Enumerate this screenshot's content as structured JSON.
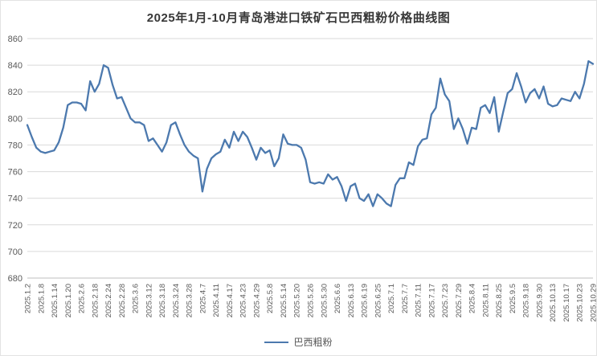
{
  "title": "2025年1月-10月青岛港进口铁矿石巴西粗粉价格曲线图",
  "legend": {
    "series_label": "巴西粗粉"
  },
  "colors": {
    "line": "#4c79ae",
    "grid": "#d9d9d9",
    "axis": "#bfbfbf",
    "tick_text": "#595959",
    "title_text": "#383838",
    "background": "#ffffff"
  },
  "chart_data": {
    "type": "line",
    "title": "2025年1月-10月青岛港进口铁矿石巴西粗粉价格曲线图",
    "xlabel": "",
    "ylabel": "",
    "ylim": [
      680,
      860
    ],
    "yticks": [
      680,
      700,
      720,
      740,
      760,
      780,
      800,
      820,
      840,
      860
    ],
    "grid": "horizontal",
    "legend_position": "bottom",
    "label_step": 3,
    "x_labels": [
      "2025.1.2",
      "2025.1.8",
      "2025.1.14",
      "2025.1.20",
      "2025.2.6",
      "2025.2.18",
      "2025.2.24",
      "2025.2.28",
      "2025.3.6",
      "2025.3.12",
      "2025.3.18",
      "2025.3.24",
      "2025.3.28",
      "2025.4.7",
      "2025.4.11",
      "2025.4.17",
      "2025.4.23",
      "2025.4.29",
      "2025.5.8",
      "2025.5.14",
      "2025.5.20",
      "2025.5.26",
      "2025.5.30",
      "2025.6.6",
      "2025.6.13",
      "2025.6.19",
      "2025.6.25",
      "2025.7.1",
      "2025.7.7",
      "2025.7.11",
      "2025.7.17",
      "2025.7.23",
      "2025.7.29",
      "2025.8.4",
      "2025.8.11",
      "2025.8.25",
      "2025.9.5",
      "2025.9.18",
      "2025.9.30",
      "2025.10.13",
      "2025.10.17",
      "2025.10.23",
      "2025.10.29"
    ],
    "series": [
      {
        "name": "巴西粗粉",
        "values": [
          795,
          786,
          778,
          775,
          774,
          775,
          776,
          782,
          793,
          810,
          812,
          812,
          811,
          806,
          828,
          820,
          826,
          840,
          838,
          825,
          815,
          816,
          808,
          800,
          797,
          797,
          795,
          783,
          785,
          780,
          775,
          782,
          795,
          797,
          788,
          780,
          775,
          772,
          770,
          745,
          762,
          770,
          773,
          775,
          784,
          778,
          790,
          783,
          790,
          786,
          778,
          769,
          778,
          774,
          776,
          764,
          770,
          788,
          781,
          780,
          780,
          778,
          769,
          752,
          751,
          752,
          751,
          758,
          754,
          756,
          749,
          738,
          749,
          751,
          740,
          738,
          743,
          734,
          743,
          740,
          736,
          734,
          750,
          755,
          755,
          767,
          765,
          779,
          784,
          785,
          803,
          808,
          830,
          818,
          813,
          792,
          800,
          792,
          781,
          793,
          792,
          808,
          810,
          804,
          816,
          790,
          805,
          819,
          822,
          834,
          824,
          812,
          819,
          822,
          815,
          824,
          811,
          809,
          810,
          815,
          814,
          813,
          820,
          815,
          826,
          843,
          841
        ]
      }
    ]
  }
}
